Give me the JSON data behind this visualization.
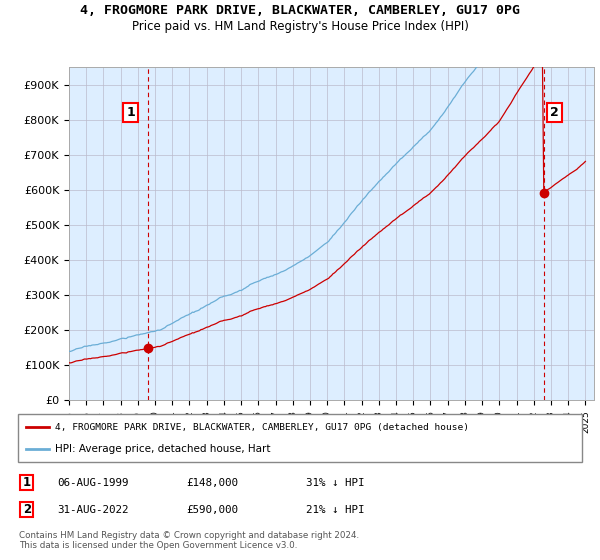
{
  "title": "4, FROGMORE PARK DRIVE, BLACKWATER, CAMBERLEY, GU17 0PG",
  "subtitle": "Price paid vs. HM Land Registry's House Price Index (HPI)",
  "ylim": [
    0,
    950000
  ],
  "yticks": [
    0,
    100000,
    200000,
    300000,
    400000,
    500000,
    600000,
    700000,
    800000,
    900000
  ],
  "ytick_labels": [
    "£0",
    "£100K",
    "£200K",
    "£300K",
    "£400K",
    "£500K",
    "£600K",
    "£700K",
    "£800K",
    "£900K"
  ],
  "hpi_color": "#6baed6",
  "price_color": "#cc0000",
  "chart_bg_color": "#ddeeff",
  "t1": 1999.583,
  "p1": 148000,
  "t2": 2022.583,
  "p2": 590000,
  "legend_line1": "4, FROGMORE PARK DRIVE, BLACKWATER, CAMBERLEY, GU17 0PG (detached house)",
  "legend_line2": "HPI: Average price, detached house, Hart",
  "table_row1": [
    "1",
    "06-AUG-1999",
    "£148,000",
    "31% ↓ HPI"
  ],
  "table_row2": [
    "2",
    "31-AUG-2022",
    "£590,000",
    "21% ↓ HPI"
  ],
  "footer": "Contains HM Land Registry data © Crown copyright and database right 2024.\nThis data is licensed under the Open Government Licence v3.0.",
  "background_color": "#ffffff",
  "grid_color": "#bbbbcc"
}
